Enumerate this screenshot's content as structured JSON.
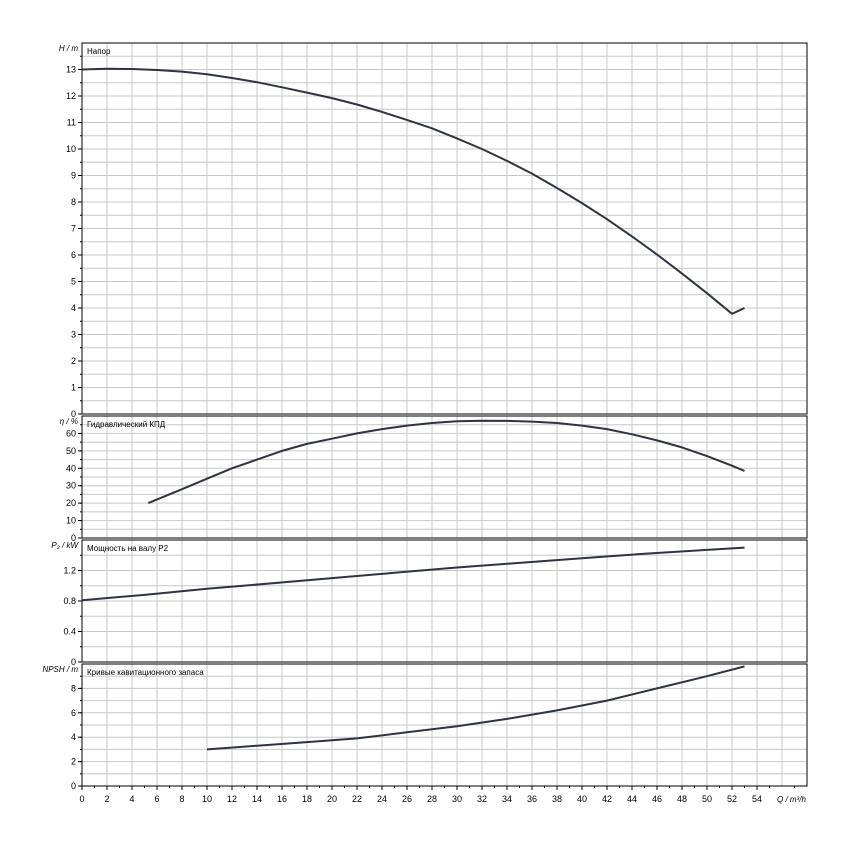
{
  "chart_data": [
    {
      "type": "line",
      "title": "Напор",
      "ylabel": "H / m",
      "xlim": [
        0,
        58
      ],
      "ylim": [
        0,
        14
      ],
      "yticks": [
        0,
        1,
        2,
        3,
        4,
        5,
        6,
        7,
        8,
        9,
        10,
        11,
        12,
        13
      ],
      "grid": true,
      "series": [
        {
          "x": [
            0,
            2,
            4,
            6,
            8,
            10,
            12,
            14,
            16,
            18,
            20,
            22,
            24,
            26,
            28,
            30,
            32,
            34,
            36,
            38,
            40,
            42,
            44,
            46,
            48,
            50,
            52,
            53
          ],
          "y": [
            13.0,
            13.03,
            13.02,
            12.98,
            12.92,
            12.82,
            12.68,
            12.52,
            12.33,
            12.13,
            11.92,
            11.68,
            11.4,
            11.1,
            10.78,
            10.4,
            10.0,
            9.55,
            9.07,
            8.53,
            7.96,
            7.35,
            6.7,
            6.02,
            5.3,
            4.56,
            3.78,
            4.0
          ]
        }
      ]
    },
    {
      "type": "line",
      "title": "Гидравлический КПД",
      "ylabel": "η / %",
      "xlim": [
        0,
        58
      ],
      "ylim": [
        0,
        70
      ],
      "yticks": [
        0,
        10,
        20,
        30,
        40,
        50,
        60
      ],
      "grid": true,
      "series": [
        {
          "x": [
            5.3,
            8,
            10,
            12,
            14,
            16,
            18,
            20,
            22,
            24,
            26,
            28,
            30,
            32,
            34,
            36,
            38,
            40,
            42,
            44,
            46,
            48,
            50,
            52,
            53
          ],
          "y": [
            20,
            28,
            34,
            40,
            45,
            50,
            54,
            57,
            60,
            62.5,
            64.5,
            66,
            67,
            67.3,
            67.2,
            66.8,
            66,
            64.5,
            62.5,
            59.5,
            56,
            52,
            47,
            41.5,
            38.5
          ]
        }
      ]
    },
    {
      "type": "line",
      "title": "Мощность на валу P2",
      "ylabel": "P₂ / kW",
      "xlim": [
        0,
        58
      ],
      "ylim": [
        0,
        1.6
      ],
      "yticks": [
        0,
        0.4,
        0.8,
        1.2
      ],
      "ytick_labels": [
        "0",
        "0.4",
        "0.8",
        "1.2"
      ],
      "grid": true,
      "series": [
        {
          "x": [
            0,
            5,
            10,
            15,
            20,
            25,
            30,
            35,
            40,
            45,
            50,
            53
          ],
          "y": [
            0.81,
            0.88,
            0.96,
            1.03,
            1.1,
            1.17,
            1.24,
            1.3,
            1.36,
            1.42,
            1.47,
            1.5
          ]
        }
      ]
    },
    {
      "type": "line",
      "title": "Кривые кавитационного запаса",
      "ylabel": "NPSH / m",
      "xlabel": "Q / m³/h",
      "xlim": [
        0,
        58
      ],
      "ylim": [
        0,
        10
      ],
      "yticks": [
        0,
        2,
        4,
        6,
        8
      ],
      "xticks": [
        0,
        2,
        4,
        6,
        8,
        10,
        12,
        14,
        16,
        18,
        20,
        22,
        24,
        26,
        28,
        30,
        32,
        34,
        36,
        38,
        40,
        42,
        44,
        46,
        48,
        50,
        52,
        54
      ],
      "grid": true,
      "series": [
        {
          "x": [
            10,
            14,
            18,
            22,
            26,
            30,
            34,
            38,
            42,
            46,
            50,
            53
          ],
          "y": [
            3.0,
            3.3,
            3.6,
            3.9,
            4.4,
            4.9,
            5.5,
            6.2,
            7.0,
            8.0,
            9.0,
            9.8
          ]
        }
      ]
    }
  ]
}
